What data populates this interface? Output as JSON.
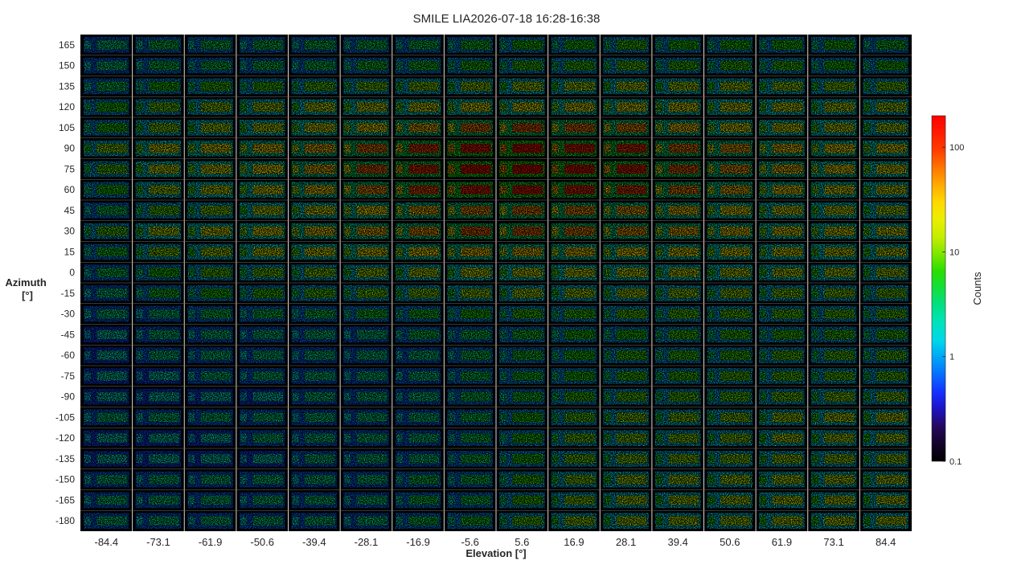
{
  "chart_data": {
    "type": "heatmap",
    "title": "SMILE LIA2026-07-18 16:28-16:38",
    "xlabel": "Elevation [°]",
    "ylabel_line1": "Azimuth",
    "ylabel_line2": "[°]",
    "x_categories": [
      "-84.4",
      "-73.1",
      "-61.9",
      "-50.6",
      "-39.4",
      "-28.1",
      "-16.9",
      "-5.6",
      "5.6",
      "16.9",
      "28.1",
      "39.4",
      "50.6",
      "61.9",
      "73.1",
      "84.4"
    ],
    "y_categories": [
      "165",
      "150",
      "135",
      "120",
      "105",
      "90",
      "75",
      "60",
      "45",
      "30",
      "15",
      "0",
      "-15",
      "-30",
      "-45",
      "-60",
      "-75",
      "-90",
      "-105",
      "-120",
      "-135",
      "-150",
      "-165",
      "-180"
    ],
    "colorbar": {
      "label": "Counts",
      "scale": "log",
      "range": [
        0.1,
        200
      ],
      "ticks": [
        "0.1",
        "1",
        "10",
        "100"
      ],
      "tick_values": [
        0.1,
        1,
        10,
        100
      ],
      "colormap": [
        "#000000",
        "#25064a",
        "#1a1aff",
        "#0088ff",
        "#00e5e5",
        "#00e080",
        "#22dd00",
        "#bbee00",
        "#ffee00",
        "#ff9900",
        "#ff3300",
        "#ff0000"
      ]
    },
    "peak_counts_estimate": [
      [
        3,
        4,
        4,
        4,
        4,
        4,
        4,
        5,
        6,
        6,
        7,
        6,
        6,
        6,
        6,
        5
      ],
      [
        3,
        4,
        4,
        4,
        4,
        5,
        5,
        6,
        7,
        7,
        8,
        7,
        7,
        7,
        6,
        6
      ],
      [
        4,
        6,
        7,
        7,
        8,
        9,
        10,
        11,
        12,
        12,
        13,
        12,
        12,
        11,
        10,
        9
      ],
      [
        6,
        9,
        11,
        12,
        14,
        16,
        18,
        20,
        20,
        20,
        20,
        20,
        18,
        16,
        14,
        12
      ],
      [
        6,
        10,
        12,
        14,
        18,
        25,
        35,
        60,
        70,
        60,
        50,
        30,
        22,
        18,
        15,
        12
      ],
      [
        10,
        18,
        22,
        28,
        35,
        60,
        90,
        130,
        150,
        120,
        100,
        60,
        40,
        30,
        25,
        20
      ],
      [
        8,
        16,
        20,
        25,
        35,
        70,
        100,
        150,
        170,
        140,
        120,
        70,
        45,
        32,
        26,
        20
      ],
      [
        6,
        12,
        16,
        20,
        28,
        50,
        80,
        120,
        130,
        110,
        90,
        55,
        35,
        26,
        20,
        16
      ],
      [
        4,
        8,
        10,
        14,
        18,
        25,
        35,
        50,
        55,
        50,
        40,
        30,
        22,
        18,
        15,
        12
      ],
      [
        8,
        14,
        18,
        22,
        28,
        35,
        45,
        70,
        65,
        55,
        45,
        35,
        28,
        22,
        20,
        18
      ],
      [
        5,
        10,
        12,
        15,
        18,
        22,
        25,
        30,
        30,
        28,
        25,
        22,
        20,
        18,
        16,
        14
      ],
      [
        4,
        6,
        8,
        9,
        10,
        12,
        13,
        15,
        16,
        16,
        16,
        15,
        14,
        14,
        13,
        12
      ],
      [
        3,
        5,
        6,
        7,
        8,
        9,
        10,
        11,
        12,
        12,
        12,
        11,
        11,
        10,
        10,
        9
      ],
      [
        3,
        3,
        4,
        4,
        4,
        5,
        5,
        6,
        7,
        7,
        8,
        8,
        8,
        8,
        8,
        8
      ],
      [
        2,
        3,
        3,
        3,
        3,
        3,
        4,
        4,
        5,
        6,
        6,
        7,
        7,
        7,
        7,
        7
      ],
      [
        2,
        3,
        3,
        3,
        3,
        3,
        3,
        4,
        5,
        6,
        7,
        7,
        7,
        8,
        8,
        8
      ],
      [
        2,
        2,
        3,
        3,
        3,
        3,
        3,
        4,
        5,
        6,
        7,
        7,
        8,
        8,
        8,
        8
      ],
      [
        2,
        2,
        2,
        2,
        3,
        3,
        3,
        4,
        5,
        7,
        8,
        8,
        8,
        9,
        10,
        10
      ],
      [
        3,
        3,
        3,
        3,
        3,
        3,
        3,
        4,
        6,
        8,
        10,
        10,
        10,
        12,
        14,
        14
      ],
      [
        2,
        2,
        2,
        3,
        3,
        3,
        3,
        4,
        6,
        9,
        10,
        10,
        10,
        12,
        12,
        12
      ],
      [
        2,
        2,
        2,
        2,
        3,
        3,
        3,
        4,
        6,
        9,
        10,
        10,
        10,
        11,
        11,
        11
      ],
      [
        3,
        3,
        3,
        3,
        3,
        3,
        4,
        4,
        7,
        10,
        12,
        12,
        12,
        13,
        13,
        13
      ],
      [
        3,
        3,
        3,
        3,
        3,
        3,
        4,
        4,
        7,
        10,
        12,
        12,
        12,
        13,
        13,
        13
      ],
      [
        3,
        3,
        3,
        3,
        3,
        3,
        4,
        5,
        8,
        11,
        12,
        12,
        12,
        13,
        13,
        13
      ]
    ]
  }
}
